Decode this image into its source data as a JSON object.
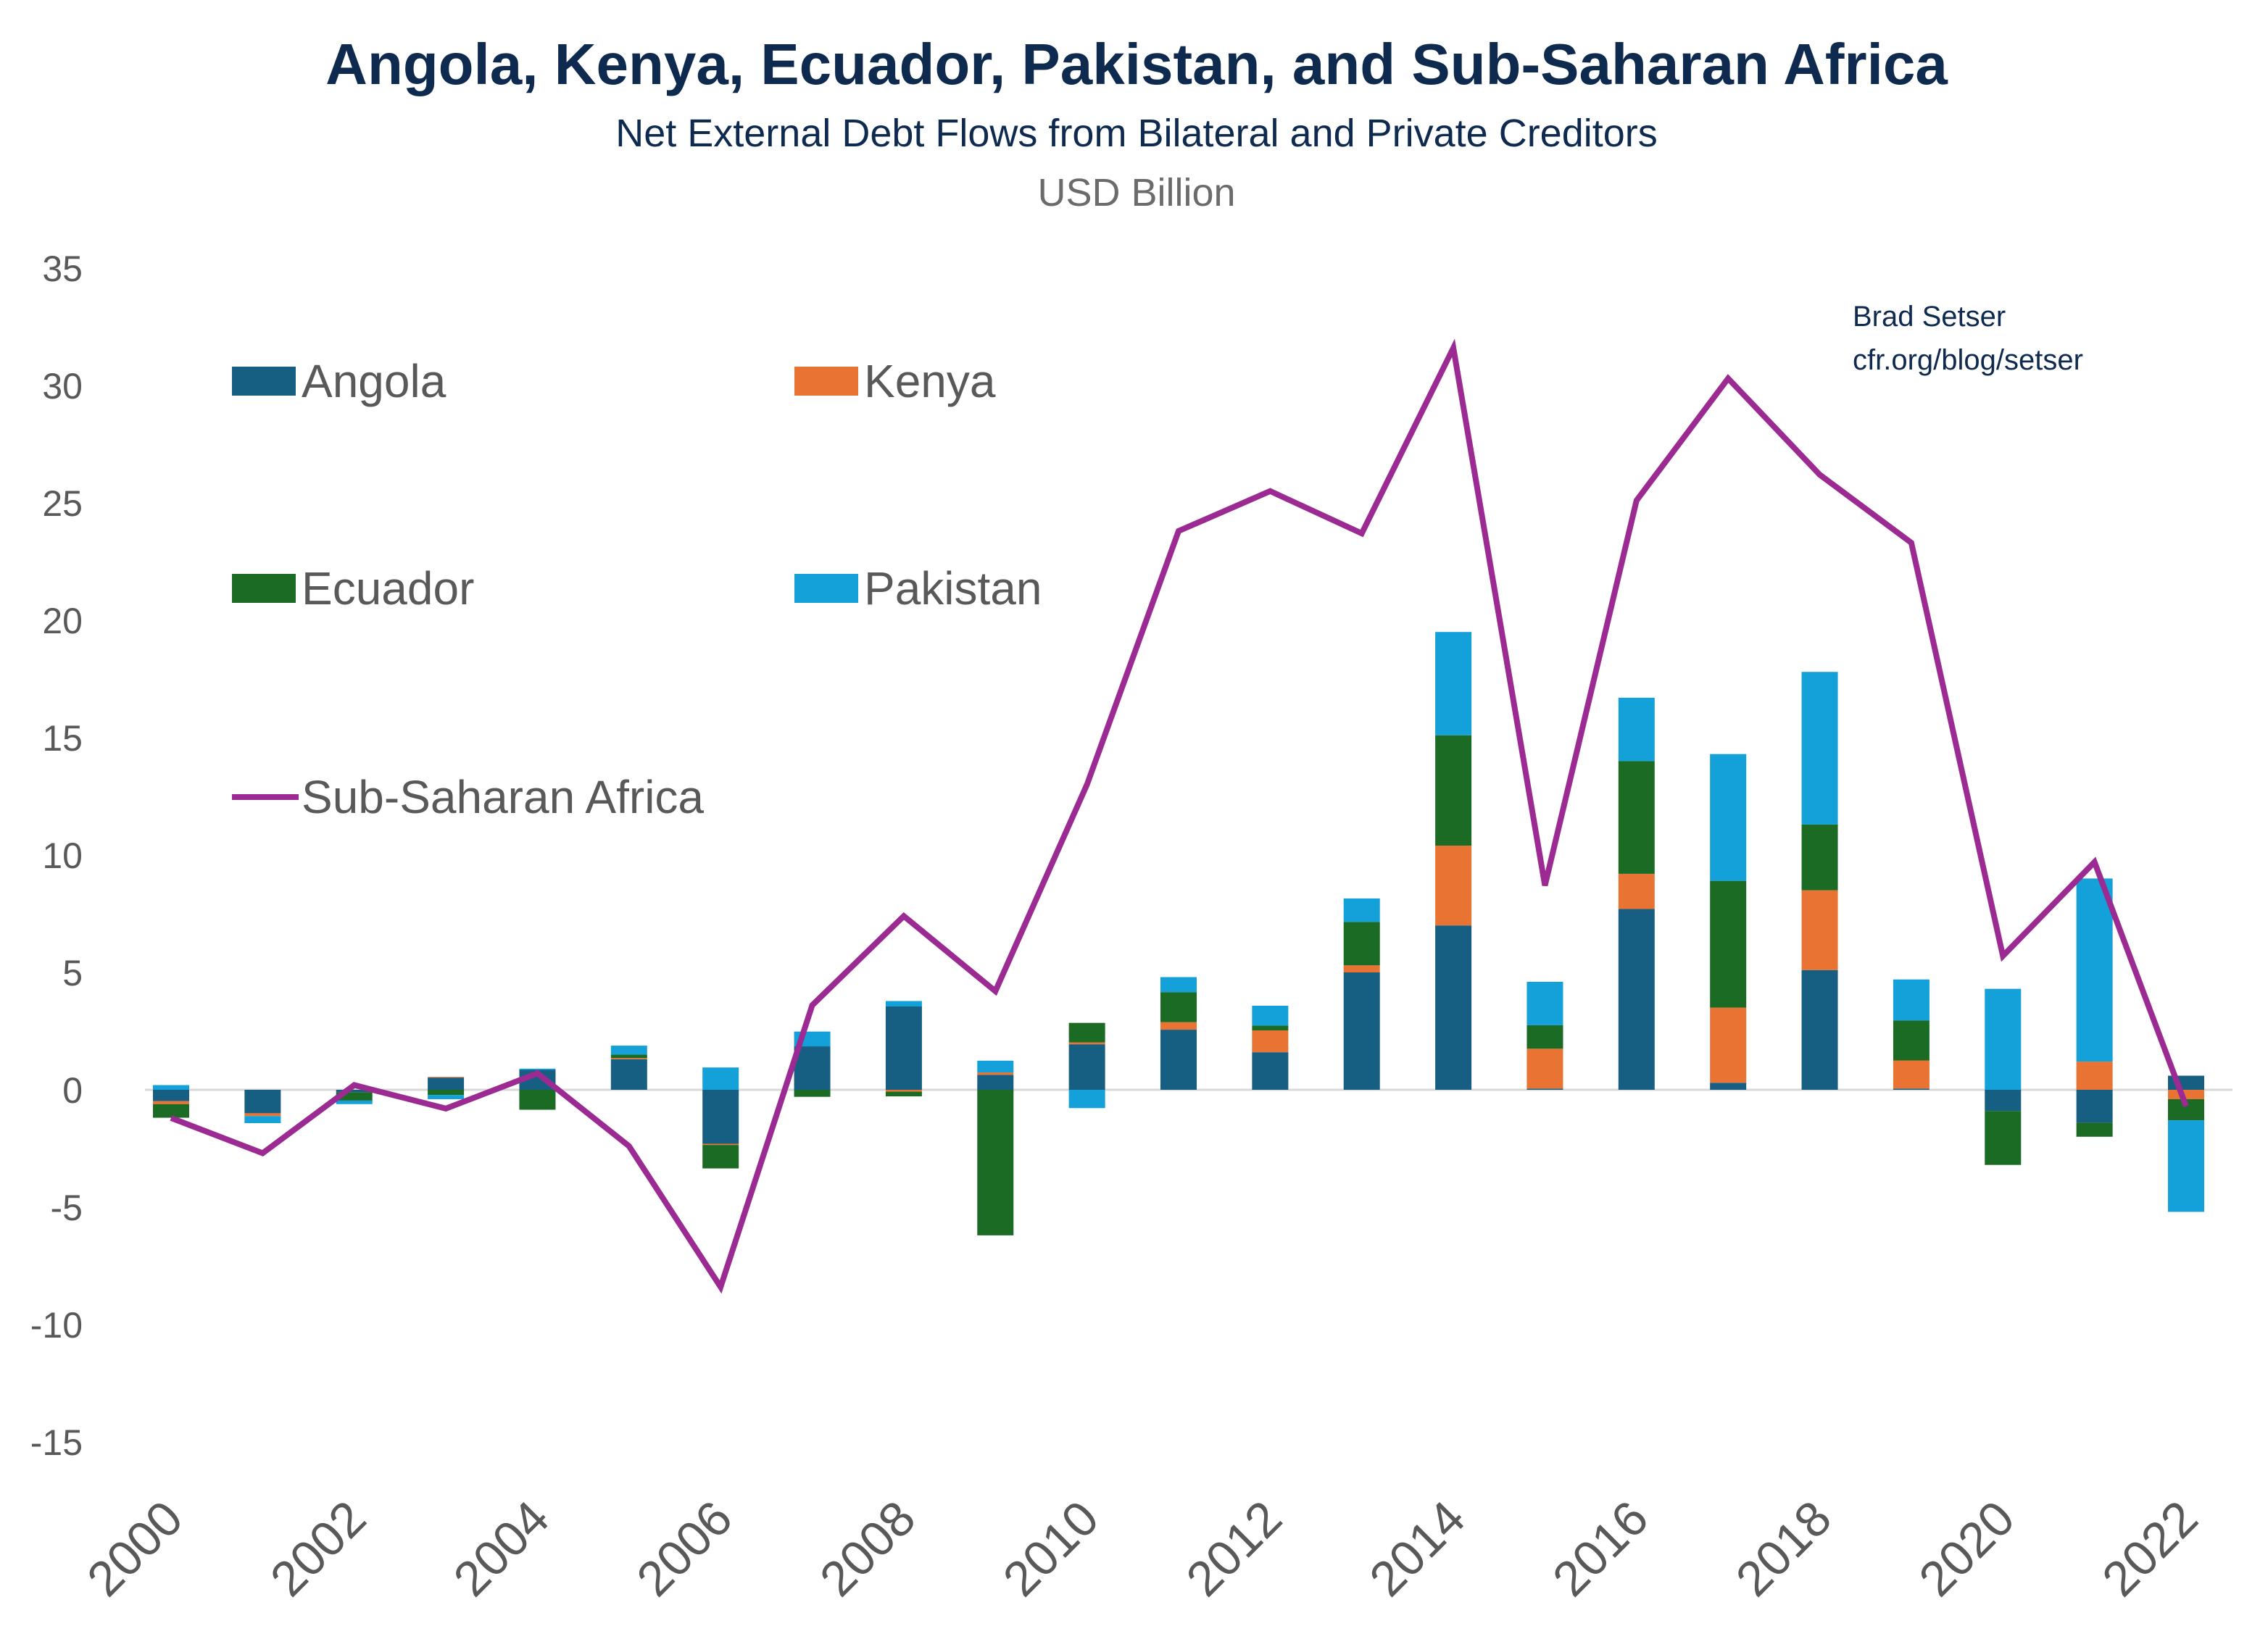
{
  "chart_data": {
    "type": "bar",
    "stacked": true,
    "title": "Angola, Kenya, Ecuador, Pakistan, and Sub-Saharan Africa",
    "subtitle": "Net External Debt Flows from Bilateral and Private Creditors",
    "units": "USD Billion",
    "credit": [
      "Brad Setser",
      "cfr.org/blog/setser"
    ],
    "ylim": [
      -15,
      35
    ],
    "yticks": [
      -15,
      -10,
      -5,
      0,
      5,
      10,
      15,
      20,
      25,
      30,
      35
    ],
    "x": [
      2000,
      2001,
      2002,
      2003,
      2004,
      2005,
      2006,
      2007,
      2008,
      2009,
      2010,
      2011,
      2012,
      2013,
      2014,
      2015,
      2016,
      2017,
      2018,
      2019,
      2020,
      2021,
      2022
    ],
    "xtick_labels": [
      "2000",
      "2002",
      "2004",
      "2006",
      "2008",
      "2010",
      "2012",
      "2014",
      "2016",
      "2018",
      "2020",
      "2022"
    ],
    "grid": false,
    "legend_position": "top-left",
    "series": [
      {
        "name": "Angola",
        "kind": "bar",
        "color": "#175f82",
        "values": [
          -0.48,
          -1.0,
          -0.1,
          0.52,
          0.85,
          1.3,
          -2.3,
          1.85,
          3.55,
          0.64,
          1.94,
          2.56,
          1.6,
          5.0,
          7.0,
          0.05,
          7.7,
          0.3,
          5.1,
          0.05,
          -0.9,
          -1.4,
          0.6
        ]
      },
      {
        "name": "Kenya",
        "kind": "bar",
        "color": "#e87333",
        "values": [
          -0.13,
          -0.12,
          0.0,
          0.03,
          0.0,
          0.05,
          -0.05,
          0.0,
          -0.08,
          0.1,
          0.08,
          0.32,
          0.93,
          0.3,
          3.4,
          1.7,
          1.5,
          3.2,
          3.4,
          1.2,
          0.0,
          1.2,
          -0.4
        ]
      },
      {
        "name": "Ecuador",
        "kind": "bar",
        "color": "#1b6b24",
        "values": [
          -0.58,
          0.0,
          -0.36,
          -0.22,
          -0.85,
          0.15,
          -1.0,
          -0.3,
          -0.2,
          -6.2,
          0.83,
          1.28,
          0.2,
          1.85,
          4.7,
          1.0,
          4.8,
          5.4,
          2.8,
          1.7,
          -2.3,
          -0.6,
          -0.9
        ]
      },
      {
        "name": "Pakistan",
        "kind": "bar",
        "color": "#14a0d8",
        "values": [
          0.2,
          -0.3,
          -0.15,
          -0.18,
          0.05,
          0.38,
          0.95,
          0.63,
          0.23,
          0.5,
          -0.78,
          0.64,
          0.85,
          1.0,
          4.4,
          1.85,
          2.7,
          5.4,
          6.5,
          1.75,
          4.3,
          7.8,
          -3.9
        ]
      },
      {
        "name": "Sub-Saharan Africa",
        "kind": "line",
        "color": "#9b2a92",
        "values": [
          -1.2,
          -2.7,
          0.2,
          -0.8,
          0.7,
          -2.4,
          -8.4,
          3.6,
          7.4,
          4.2,
          13.0,
          23.8,
          25.5,
          23.7,
          31.6,
          8.7,
          25.1,
          30.3,
          26.2,
          23.3,
          5.7,
          9.7,
          -0.7
        ]
      }
    ]
  }
}
